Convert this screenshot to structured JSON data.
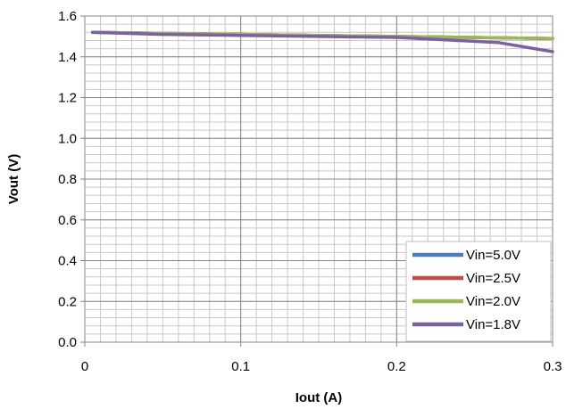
{
  "chart_data": {
    "type": "line",
    "title": "",
    "xlabel": "Iout (A)",
    "ylabel": "Vout (V)",
    "xlim": [
      0,
      0.3
    ],
    "ylim": [
      0,
      1.6
    ],
    "x_ticks": [
      "0",
      "0.1",
      "0.2",
      "0.3"
    ],
    "y_ticks": [
      "0.0",
      "0.2",
      "0.4",
      "0.6",
      "0.8",
      "1.0",
      "1.2",
      "1.4",
      "1.6"
    ],
    "grid": true,
    "legend_position": "bottom-right",
    "series": [
      {
        "name": "Vin=5.0V",
        "color": "#4a7ebb",
        "points": [
          [
            0.005,
            1.52
          ],
          [
            0.1,
            1.51
          ],
          [
            0.2,
            1.5
          ],
          [
            0.3,
            1.49
          ]
        ]
      },
      {
        "name": "Vin=2.5V",
        "color": "#be4b48",
        "points": [
          [
            0.005,
            1.52
          ],
          [
            0.1,
            1.51
          ],
          [
            0.2,
            1.5
          ],
          [
            0.3,
            1.49
          ]
        ]
      },
      {
        "name": "Vin=2.0V",
        "color": "#98b954",
        "points": [
          [
            0.005,
            1.52
          ],
          [
            0.1,
            1.51
          ],
          [
            0.2,
            1.5
          ],
          [
            0.25,
            1.495
          ],
          [
            0.3,
            1.49
          ]
        ]
      },
      {
        "name": "Vin=1.8V",
        "color": "#7d60a0",
        "points": [
          [
            0.005,
            1.52
          ],
          [
            0.05,
            1.51
          ],
          [
            0.1,
            1.505
          ],
          [
            0.15,
            1.5
          ],
          [
            0.2,
            1.495
          ],
          [
            0.24,
            1.48
          ],
          [
            0.265,
            1.47
          ],
          [
            0.3,
            1.425
          ]
        ]
      }
    ]
  }
}
